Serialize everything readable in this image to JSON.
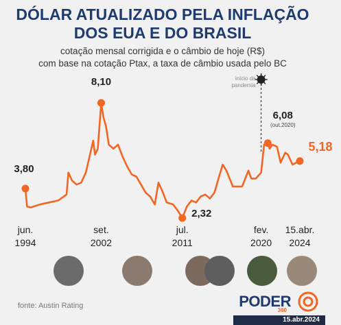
{
  "chart_data": {
    "type": "line",
    "title": "DÓLAR ATUALIZADO PELA INFLAÇÃO\nDOS EUA E DO BRASIL",
    "subtitle": "cotação mensal corrigida e o câmbio de hoje (R$)\ncom base na cotação Ptax, a taxa de câmbio usada pelo BC",
    "color": "#f26522",
    "x": [
      1994.42,
      1994.6,
      1995,
      1996,
      1997,
      1998,
      1998.9,
      1999.1,
      1999.5,
      2000,
      2000.5,
      2001,
      2001.5,
      2001.8,
      2002,
      2002.3,
      2002.67,
      2002.9,
      2003.2,
      2003.5,
      2004,
      2004.5,
      2005,
      2005.5,
      2006,
      2006.5,
      2007,
      2007.5,
      2008,
      2008.5,
      2008.9,
      2009.3,
      2009.8,
      2010.5,
      2011,
      2011.5,
      2012,
      2012.5,
      2013,
      2013.5,
      2014,
      2014.5,
      2015,
      2015.5,
      2015.9,
      2016.3,
      2017,
      2017.5,
      2018,
      2018.7,
      2019,
      2019.5,
      2020.08,
      2020.4,
      2020.8,
      2021,
      2021.3,
      2021.8,
      2022.2,
      2022.7,
      2023,
      2023.5,
      2023.9,
      2024.29
    ],
    "values": [
      3.8,
      2.9,
      2.85,
      3.0,
      3.1,
      3.2,
      3.5,
      4.6,
      4.2,
      4.0,
      4.1,
      4.6,
      5.6,
      6.2,
      5.5,
      5.8,
      8.1,
      7.4,
      6.9,
      6.0,
      5.8,
      6.0,
      5.4,
      4.9,
      4.5,
      4.4,
      4.0,
      3.6,
      3.4,
      3.0,
      4.1,
      3.7,
      3.1,
      3.0,
      2.7,
      2.32,
      2.9,
      3.2,
      3.1,
      3.4,
      3.5,
      3.3,
      3.6,
      4.4,
      5.0,
      4.7,
      3.9,
      3.9,
      3.9,
      4.7,
      4.3,
      4.3,
      4.6,
      6.0,
      6.08,
      5.8,
      6.0,
      5.9,
      5.1,
      5.6,
      5.5,
      5.0,
      5.1,
      5.18
    ],
    "value_labels": [
      "3,80",
      null,
      null,
      null,
      null,
      null,
      null,
      null,
      null,
      null,
      null,
      null,
      null,
      null,
      null,
      null,
      "8,10",
      null,
      null,
      null,
      null,
      null,
      null,
      null,
      null,
      null,
      null,
      null,
      null,
      null,
      null,
      null,
      null,
      null,
      null,
      "2,32",
      null,
      null,
      null,
      null,
      null,
      null,
      null,
      null,
      null,
      null,
      null,
      null,
      null,
      null,
      null,
      null,
      null,
      null,
      "6,08",
      null,
      null,
      null,
      null,
      null,
      null,
      null,
      null,
      "5,18"
    ],
    "annotations": [
      "(out.2020)",
      "início da\npandemia"
    ],
    "xticks": [
      {
        "value": 1994.42,
        "label": "jun.\n1994"
      },
      {
        "value": 2002.67,
        "label": "set.\n2002"
      },
      {
        "value": 2011.5,
        "label": "jul.\n2011"
      },
      {
        "value": 2020.08,
        "label": "fev.\n2020"
      },
      {
        "value": 2024.29,
        "label": "15.abr.\n2024"
      }
    ],
    "source": "fonte: Austin Rating",
    "logo": "PODER",
    "logo_sub": "360",
    "date": "15.abr.2024"
  }
}
